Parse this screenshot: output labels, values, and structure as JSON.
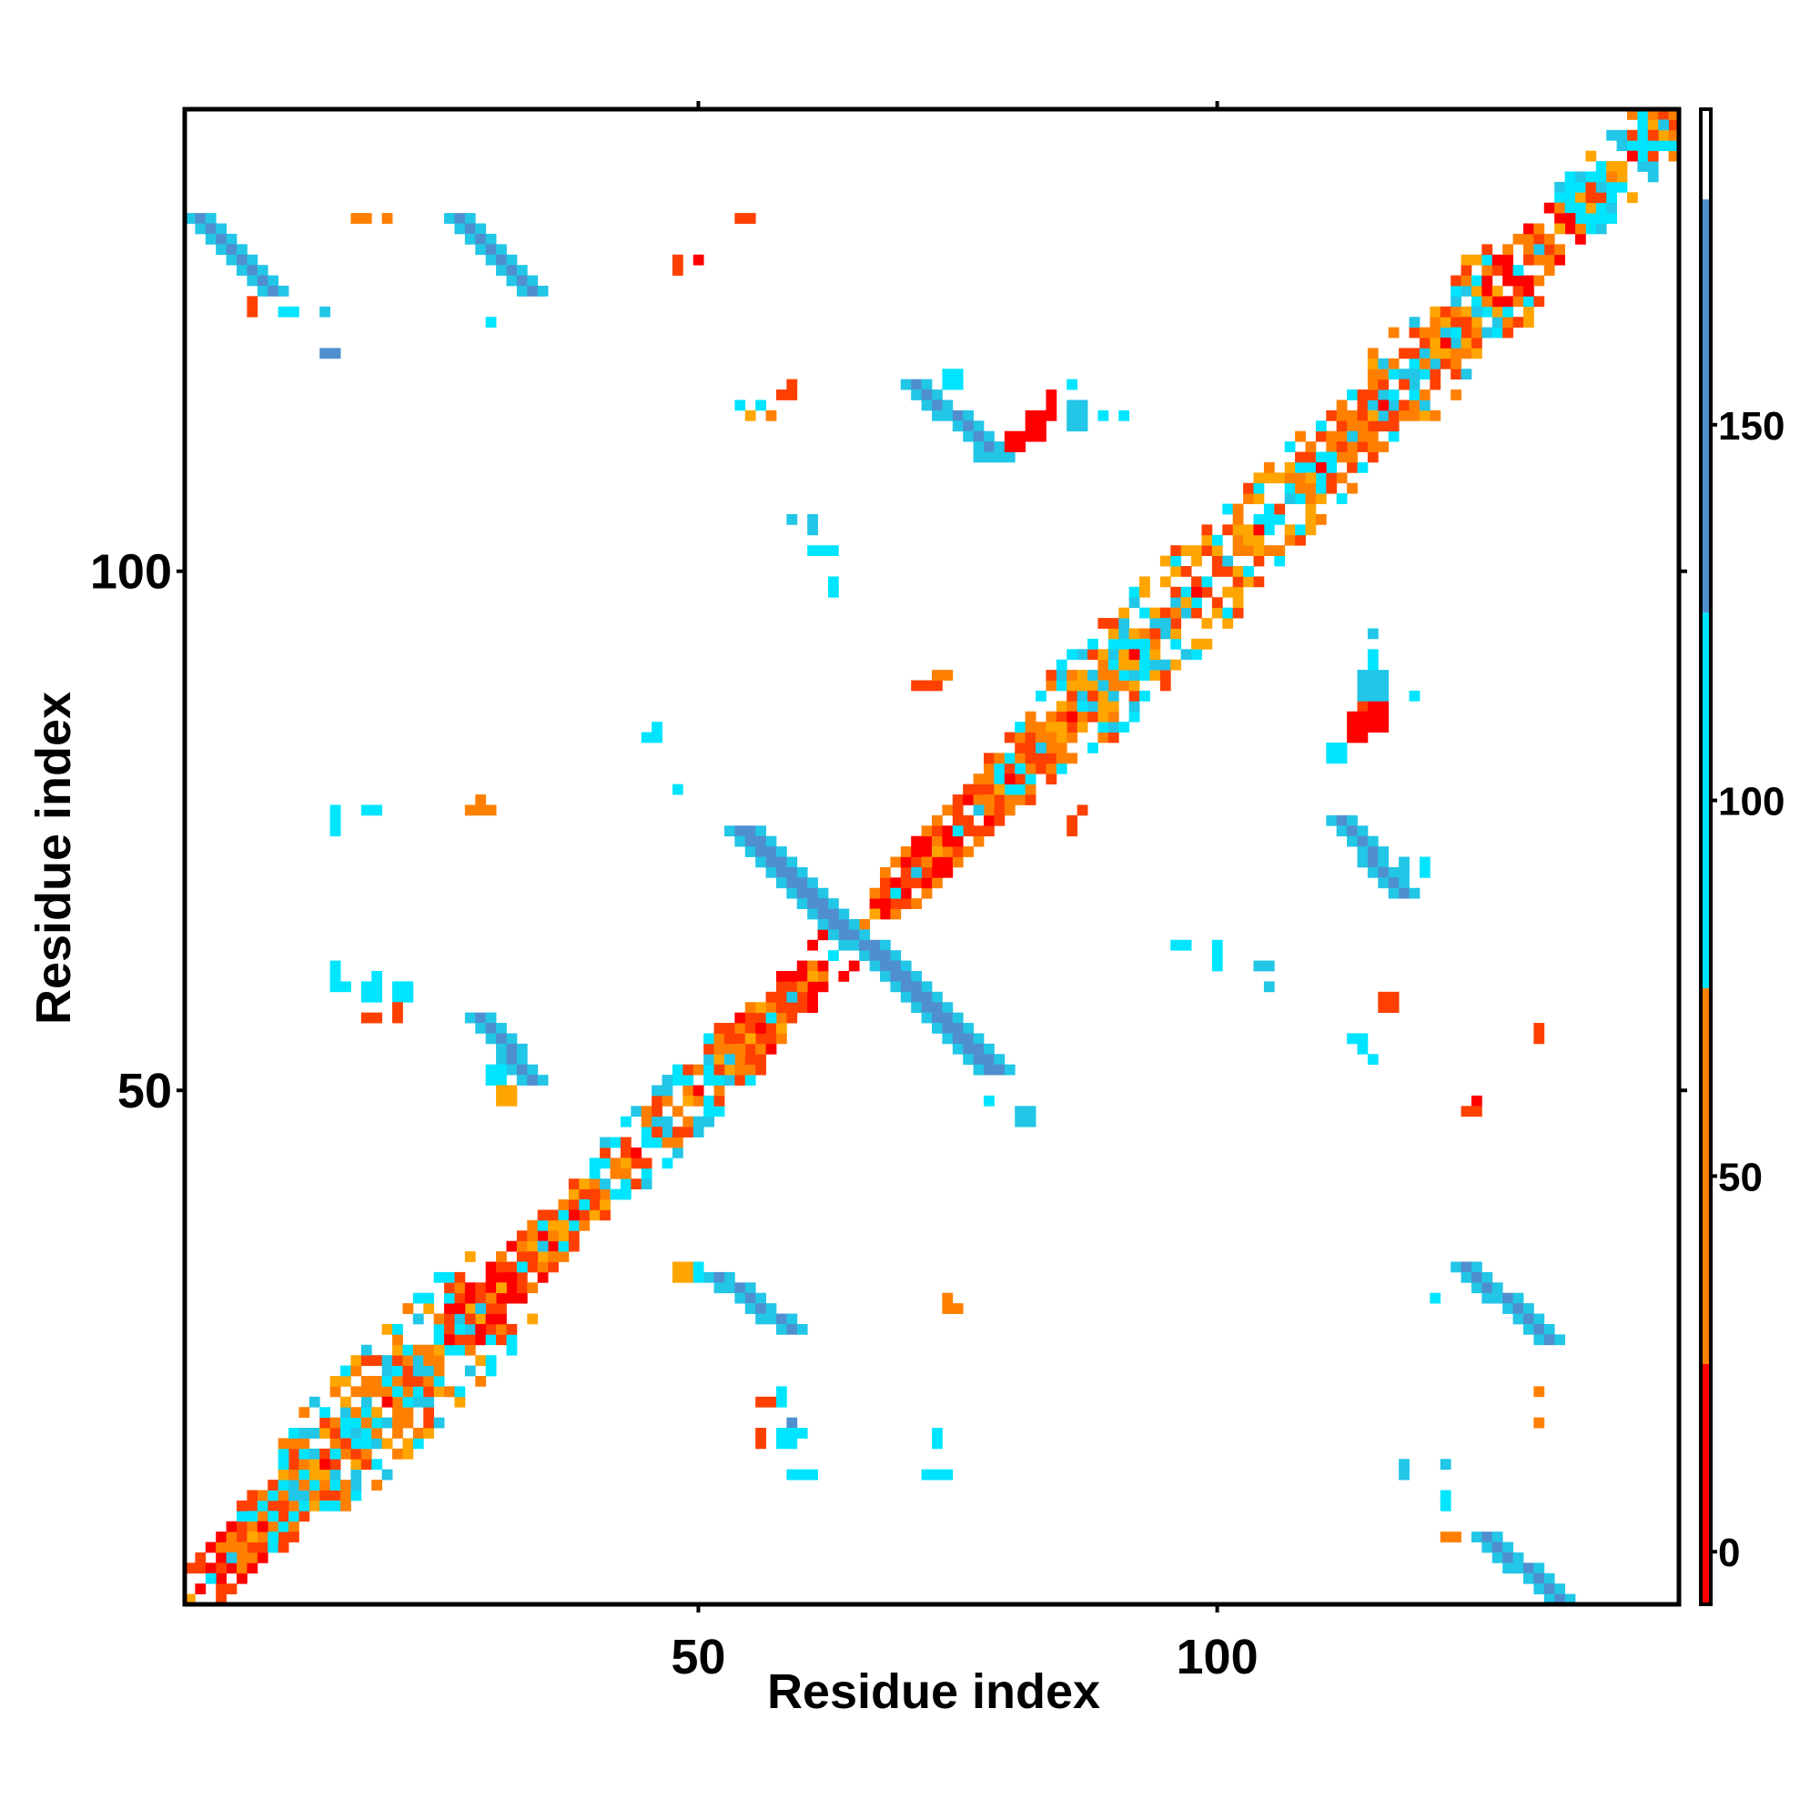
{
  "chart_data": {
    "type": "heatmap",
    "title": "",
    "xlabel": "Residue index",
    "ylabel": "Residue index",
    "xlim": [
      1,
      144
    ],
    "ylim": [
      1,
      144
    ],
    "x_ticks": [
      50,
      100
    ],
    "y_ticks": [
      50,
      100
    ],
    "colorbar": {
      "ticks": [
        0,
        50,
        100,
        150
      ],
      "range": [
        -7,
        192
      ],
      "bands": [
        {
          "from": -7,
          "to": 25,
          "color": "#ff0000"
        },
        {
          "from": 25,
          "to": 75,
          "color": "#ff8000"
        },
        {
          "from": 75,
          "to": 125,
          "color": "#00e5ff"
        },
        {
          "from": 125,
          "to": 180,
          "color": "#4f8fcf"
        },
        {
          "from": 180,
          "to": 192,
          "color": "#ffffff"
        }
      ]
    },
    "colors": {
      "red": "#ff0000",
      "orange_red": "#ff4000",
      "orange": "#ff8000",
      "amber": "#ffa500",
      "cyan": "#00e5ff",
      "sky": "#22c6e6",
      "steel": "#4f8fcf"
    },
    "diagonal_pattern": [
      "orange",
      "amber",
      "red",
      "cyan",
      "orange_red",
      "sky"
    ],
    "diagonal_blocks": [
      {
        "from": 1,
        "to": 10,
        "width": 3,
        "mix": [
          "red",
          "orange_red",
          "orange"
        ]
      },
      {
        "from": 6,
        "to": 12,
        "width": 4,
        "mix": [
          "orange",
          "cyan",
          "orange_red"
        ]
      },
      {
        "from": 10,
        "to": 28,
        "width": 7,
        "mix": [
          "cyan",
          "orange",
          "sky",
          "orange_red",
          "amber"
        ]
      },
      {
        "from": 26,
        "to": 35,
        "width": 3,
        "mix": [
          "red",
          "orange_red",
          "orange"
        ]
      },
      {
        "from": 34,
        "to": 40,
        "width": 3,
        "mix": [
          "orange",
          "amber",
          "cyan",
          "orange_red"
        ]
      },
      {
        "from": 40,
        "to": 52,
        "width": 4,
        "mix": [
          "cyan",
          "orange",
          "sky",
          "orange_red"
        ]
      },
      {
        "from": 52,
        "to": 64,
        "width": 3,
        "mix": [
          "orange_red",
          "orange",
          "red",
          "amber"
        ]
      },
      {
        "from": 67,
        "to": 78,
        "width": 3,
        "mix": [
          "red",
          "orange_red",
          "orange"
        ]
      },
      {
        "from": 78,
        "to": 83,
        "width": 4,
        "mix": [
          "cyan",
          "orange",
          "orange_red"
        ]
      },
      {
        "from": 83,
        "to": 96,
        "width": 6,
        "mix": [
          "cyan",
          "orange",
          "orange_red",
          "sky",
          "amber"
        ]
      },
      {
        "from": 96,
        "to": 108,
        "width": 5,
        "mix": [
          "cyan",
          "orange",
          "orange_red",
          "amber"
        ]
      },
      {
        "from": 108,
        "to": 115,
        "width": 4,
        "mix": [
          "orange",
          "cyan",
          "orange_red"
        ]
      },
      {
        "from": 115,
        "to": 126,
        "width": 6,
        "mix": [
          "orange",
          "cyan",
          "orange_red",
          "sky",
          "amber"
        ]
      },
      {
        "from": 126,
        "to": 133,
        "width": 3,
        "mix": [
          "red",
          "orange_red",
          "orange"
        ]
      },
      {
        "from": 133,
        "to": 144,
        "width": 4,
        "mix": [
          "orange",
          "cyan",
          "orange_red",
          "amber",
          "sky"
        ]
      }
    ],
    "antidiagonal_bands": [
      {
        "x0": 51,
        "y0": 32,
        "x1": 58,
        "y1": 27,
        "width": 3,
        "core": "steel",
        "edge": "sky"
      },
      {
        "x0": 28,
        "y0": 57,
        "x1": 33,
        "y1": 51,
        "width": 3,
        "core": "steel",
        "edge": "sky"
      },
      {
        "x0": 53,
        "y0": 75,
        "x1": 77,
        "y1": 52,
        "width": 4,
        "core": "steel",
        "edge": "sky"
      },
      {
        "x0": 1,
        "y0": 134,
        "x1": 8,
        "y1": 127,
        "width": 3,
        "core": "steel",
        "edge": "sky"
      },
      {
        "x0": 26,
        "y0": 134,
        "x1": 33,
        "y1": 127,
        "width": 3,
        "core": "steel",
        "edge": "sky"
      },
      {
        "x0": 70,
        "y0": 118,
        "x1": 78,
        "y1": 111,
        "width": 3,
        "core": "steel",
        "edge": "sky"
      },
      {
        "x0": 111,
        "y0": 76,
        "x1": 117,
        "y1": 69,
        "width": 3,
        "core": "steel",
        "edge": "sky"
      },
      {
        "x0": 123,
        "y0": 33,
        "x1": 131,
        "y1": 26,
        "width": 3,
        "core": "steel",
        "edge": "sky"
      },
      {
        "x0": 125,
        "y0": 7,
        "x1": 132,
        "y1": 1,
        "width": 3,
        "core": "steel",
        "edge": "sky"
      }
    ],
    "patches": [
      {
        "x": 48,
        "y": 32,
        "w": 2,
        "h": 2,
        "color": "amber"
      },
      {
        "x": 50,
        "y": 32,
        "w": 1,
        "h": 2,
        "color": "cyan"
      },
      {
        "x": 30,
        "y": 51,
        "w": 2,
        "h": 2,
        "color": "cyan"
      },
      {
        "x": 31,
        "y": 49,
        "w": 2,
        "h": 2,
        "color": "amber"
      },
      {
        "x": 74,
        "y": 118,
        "w": 2,
        "h": 1,
        "color": "cyan"
      },
      {
        "x": 74,
        "y": 119,
        "w": 2,
        "h": 1,
        "color": "cyan"
      },
      {
        "x": 80,
        "y": 112,
        "w": 2,
        "h": 2,
        "color": "red"
      },
      {
        "x": 82,
        "y": 113,
        "w": 2,
        "h": 3,
        "color": "red"
      },
      {
        "x": 84,
        "y": 115,
        "w": 1,
        "h": 3,
        "color": "red"
      },
      {
        "x": 77,
        "y": 111,
        "w": 3,
        "h": 1,
        "color": "sky"
      },
      {
        "x": 86,
        "y": 114,
        "w": 2,
        "h": 3,
        "color": "sky"
      },
      {
        "x": 89,
        "y": 115,
        "w": 1,
        "h": 1,
        "color": "cyan"
      },
      {
        "x": 91,
        "y": 115,
        "w": 1,
        "h": 1,
        "color": "cyan"
      },
      {
        "x": 86,
        "y": 118,
        "w": 1,
        "h": 1,
        "color": "cyan"
      },
      {
        "x": 114,
        "y": 87,
        "w": 2,
        "h": 1,
        "color": "orange_red"
      },
      {
        "x": 113,
        "y": 84,
        "w": 2,
        "h": 3,
        "color": "red"
      },
      {
        "x": 115,
        "y": 85,
        "w": 2,
        "h": 3,
        "color": "red"
      },
      {
        "x": 111,
        "y": 82,
        "w": 2,
        "h": 2,
        "color": "cyan"
      },
      {
        "x": 114,
        "y": 88,
        "w": 3,
        "h": 3,
        "color": "sky"
      },
      {
        "x": 115,
        "y": 91,
        "w": 1,
        "h": 2,
        "color": "cyan"
      },
      {
        "x": 119,
        "y": 88,
        "w": 1,
        "h": 1,
        "color": "cyan"
      },
      {
        "x": 115,
        "y": 94,
        "w": 1,
        "h": 1,
        "color": "sky"
      },
      {
        "x": 118,
        "y": 71,
        "w": 1,
        "h": 2,
        "color": "sky"
      },
      {
        "x": 120,
        "y": 71,
        "w": 1,
        "h": 2,
        "color": "cyan"
      },
      {
        "x": 113,
        "y": 55,
        "w": 2,
        "h": 1,
        "color": "cyan"
      },
      {
        "x": 114,
        "y": 54,
        "w": 1,
        "h": 1,
        "color": "cyan"
      },
      {
        "x": 115,
        "y": 53,
        "w": 1,
        "h": 1,
        "color": "cyan"
      },
      {
        "x": 116,
        "y": 58,
        "w": 2,
        "h": 2,
        "color": "orange_red"
      },
      {
        "x": 131,
        "y": 55,
        "w": 1,
        "h": 2,
        "color": "orange_red"
      },
      {
        "x": 125,
        "y": 49,
        "w": 1,
        "h": 1,
        "color": "red"
      },
      {
        "x": 124,
        "y": 48,
        "w": 2,
        "h": 1,
        "color": "orange_red"
      },
      {
        "x": 131,
        "y": 21,
        "w": 1,
        "h": 1,
        "color": "orange"
      },
      {
        "x": 131,
        "y": 18,
        "w": 1,
        "h": 1,
        "color": "orange"
      },
      {
        "x": 121,
        "y": 30,
        "w": 1,
        "h": 1,
        "color": "cyan"
      },
      {
        "x": 118,
        "y": 13,
        "w": 1,
        "h": 2,
        "color": "sky"
      },
      {
        "x": 122,
        "y": 14,
        "w": 1,
        "h": 1,
        "color": "sky"
      },
      {
        "x": 122,
        "y": 10,
        "w": 1,
        "h": 2,
        "color": "cyan"
      },
      {
        "x": 122,
        "y": 7,
        "w": 2,
        "h": 1,
        "color": "orange"
      },
      {
        "x": 96,
        "y": 64,
        "w": 2,
        "h": 1,
        "color": "cyan"
      },
      {
        "x": 100,
        "y": 62,
        "w": 1,
        "h": 3,
        "color": "cyan"
      },
      {
        "x": 104,
        "y": 62,
        "w": 2,
        "h": 1,
        "color": "sky"
      },
      {
        "x": 105,
        "y": 60,
        "w": 1,
        "h": 1,
        "color": "sky"
      },
      {
        "x": 86,
        "y": 75,
        "w": 1,
        "h": 2,
        "color": "orange_red"
      },
      {
        "x": 87,
        "y": 77,
        "w": 1,
        "h": 1,
        "color": "orange_red"
      },
      {
        "x": 71,
        "y": 89,
        "w": 3,
        "h": 1,
        "color": "orange_red"
      },
      {
        "x": 73,
        "y": 90,
        "w": 2,
        "h": 1,
        "color": "orange"
      },
      {
        "x": 45,
        "y": 84,
        "w": 2,
        "h": 1,
        "color": "cyan"
      },
      {
        "x": 46,
        "y": 85,
        "w": 1,
        "h": 1,
        "color": "cyan"
      },
      {
        "x": 48,
        "y": 79,
        "w": 1,
        "h": 1,
        "color": "cyan"
      },
      {
        "x": 28,
        "y": 77,
        "w": 3,
        "h": 1,
        "color": "orange"
      },
      {
        "x": 29,
        "y": 78,
        "w": 1,
        "h": 1,
        "color": "orange"
      },
      {
        "x": 15,
        "y": 75,
        "w": 1,
        "h": 3,
        "color": "cyan"
      },
      {
        "x": 18,
        "y": 77,
        "w": 2,
        "h": 1,
        "color": "cyan"
      },
      {
        "x": 15,
        "y": 60,
        "w": 1,
        "h": 3,
        "color": "cyan"
      },
      {
        "x": 16,
        "y": 60,
        "w": 1,
        "h": 1,
        "color": "cyan"
      },
      {
        "x": 18,
        "y": 59,
        "w": 2,
        "h": 2,
        "color": "cyan"
      },
      {
        "x": 19,
        "y": 61,
        "w": 1,
        "h": 1,
        "color": "cyan"
      },
      {
        "x": 21,
        "y": 59,
        "w": 2,
        "h": 2,
        "color": "cyan"
      },
      {
        "x": 18,
        "y": 57,
        "w": 2,
        "h": 1,
        "color": "orange_red"
      },
      {
        "x": 21,
        "y": 57,
        "w": 1,
        "h": 2,
        "color": "orange_red"
      },
      {
        "x": 78,
        "y": 49,
        "w": 1,
        "h": 1,
        "color": "cyan"
      },
      {
        "x": 81,
        "y": 47,
        "w": 2,
        "h": 2,
        "color": "sky"
      },
      {
        "x": 74,
        "y": 29,
        "w": 1,
        "h": 2,
        "color": "orange"
      },
      {
        "x": 75,
        "y": 29,
        "w": 1,
        "h": 1,
        "color": "orange"
      },
      {
        "x": 56,
        "y": 20,
        "w": 2,
        "h": 1,
        "color": "orange_red"
      },
      {
        "x": 56,
        "y": 16,
        "w": 1,
        "h": 2,
        "color": "orange_red"
      },
      {
        "x": 58,
        "y": 20,
        "w": 1,
        "h": 2,
        "color": "cyan"
      },
      {
        "x": 59,
        "y": 18,
        "w": 1,
        "h": 1,
        "color": "steel"
      },
      {
        "x": 58,
        "y": 16,
        "w": 2,
        "h": 2,
        "color": "cyan"
      },
      {
        "x": 60,
        "y": 17,
        "w": 1,
        "h": 1,
        "color": "cyan"
      },
      {
        "x": 59,
        "y": 13,
        "w": 3,
        "h": 1,
        "color": "cyan"
      },
      {
        "x": 72,
        "y": 13,
        "w": 3,
        "h": 1,
        "color": "cyan"
      },
      {
        "x": 73,
        "y": 16,
        "w": 1,
        "h": 2,
        "color": "cyan"
      },
      {
        "x": 17,
        "y": 134,
        "w": 2,
        "h": 1,
        "color": "orange"
      },
      {
        "x": 20,
        "y": 134,
        "w": 1,
        "h": 1,
        "color": "orange"
      },
      {
        "x": 54,
        "y": 134,
        "w": 2,
        "h": 1,
        "color": "orange_red"
      },
      {
        "x": 48,
        "y": 129,
        "w": 1,
        "h": 2,
        "color": "orange_red"
      },
      {
        "x": 50,
        "y": 130,
        "w": 1,
        "h": 1,
        "color": "red"
      },
      {
        "x": 7,
        "y": 125,
        "w": 1,
        "h": 2,
        "color": "orange_red"
      },
      {
        "x": 10,
        "y": 125,
        "w": 2,
        "h": 1,
        "color": "cyan"
      },
      {
        "x": 14,
        "y": 125,
        "w": 1,
        "h": 1,
        "color": "sky"
      },
      {
        "x": 14,
        "y": 121,
        "w": 2,
        "h": 1,
        "color": "steel"
      },
      {
        "x": 30,
        "y": 124,
        "w": 1,
        "h": 1,
        "color": "cyan"
      },
      {
        "x": 54,
        "y": 116,
        "w": 1,
        "h": 1,
        "color": "cyan"
      },
      {
        "x": 55,
        "y": 115,
        "w": 1,
        "h": 1,
        "color": "amber"
      },
      {
        "x": 56,
        "y": 116,
        "w": 1,
        "h": 1,
        "color": "cyan"
      },
      {
        "x": 57,
        "y": 115,
        "w": 1,
        "h": 1,
        "color": "orange"
      },
      {
        "x": 58,
        "y": 117,
        "w": 2,
        "h": 1,
        "color": "orange_red"
      },
      {
        "x": 59,
        "y": 118,
        "w": 1,
        "h": 1,
        "color": "orange_red"
      },
      {
        "x": 59,
        "y": 105,
        "w": 1,
        "h": 1,
        "color": "sky"
      },
      {
        "x": 61,
        "y": 104,
        "w": 1,
        "h": 2,
        "color": "sky"
      },
      {
        "x": 61,
        "y": 102,
        "w": 3,
        "h": 1,
        "color": "cyan"
      },
      {
        "x": 63,
        "y": 98,
        "w": 1,
        "h": 2,
        "color": "cyan"
      }
    ]
  }
}
